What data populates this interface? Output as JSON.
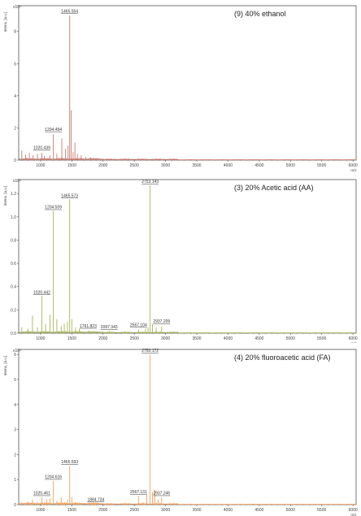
{
  "chart_data": [
    {
      "type": "line",
      "panel_label": "(9) 40% ethanol",
      "ylabel": "Intens. [a.u.]",
      "y_exponent": "x10⁴",
      "xlabel": "m/z",
      "x_ticks": [
        "1000",
        "1500",
        "2000",
        "2500",
        "3000",
        "3500",
        "4000",
        "4500",
        "5000",
        "5500",
        "6000"
      ],
      "y_ticks": [
        "0",
        "2",
        "4",
        "6",
        "8"
      ],
      "xlim": [
        650,
        6050
      ],
      "ylim": [
        0,
        9.6
      ],
      "color": "#c97a6e",
      "peaks": [
        {
          "mz": 700,
          "intensity": 0.6
        },
        {
          "mz": 760,
          "intensity": 0.35
        },
        {
          "mz": 820,
          "intensity": 0.45
        },
        {
          "mz": 880,
          "intensity": 0.3
        },
        {
          "mz": 950,
          "intensity": 0.4
        },
        {
          "mz": 1020.439,
          "intensity": 0.45
        },
        {
          "mz": 1060,
          "intensity": 0.25
        },
        {
          "mz": 1150,
          "intensity": 0.3
        },
        {
          "mz": 1204.494,
          "intensity": 1.6
        },
        {
          "mz": 1260,
          "intensity": 0.4
        },
        {
          "mz": 1340,
          "intensity": 1.35
        },
        {
          "mz": 1400,
          "intensity": 0.7
        },
        {
          "mz": 1440,
          "intensity": 0.9
        },
        {
          "mz": 1465.554,
          "intensity": 9.0
        },
        {
          "mz": 1490,
          "intensity": 3.1
        },
        {
          "mz": 1520,
          "intensity": 0.5
        },
        {
          "mz": 1550,
          "intensity": 1.1
        },
        {
          "mz": 1590,
          "intensity": 0.4
        },
        {
          "mz": 1650,
          "intensity": 0.3
        },
        {
          "mz": 1720,
          "intensity": 0.2
        },
        {
          "mz": 1800,
          "intensity": 0.15
        }
      ],
      "labels": [
        {
          "text": "1465.554",
          "mz": 1465.554,
          "intensity": 9.1
        },
        {
          "text": "1204.494",
          "mz": 1204.494,
          "intensity": 1.75
        },
        {
          "text": "1020.439",
          "mz": 1020.439,
          "intensity": 0.6
        }
      ]
    },
    {
      "type": "line",
      "panel_label": "(3) 20% Acetic acid (AA)",
      "ylabel": "Intens. [a.u.]",
      "y_exponent": "x10⁴",
      "xlabel": "m/z",
      "x_ticks": [
        "1000",
        "1500",
        "2000",
        "2500",
        "3000",
        "3500",
        "4000",
        "4500",
        "5000",
        "5500",
        "6000"
      ],
      "y_ticks": [
        "0.0",
        "0.2",
        "0.4",
        "0.6",
        "0.8",
        "1.0",
        "1.2"
      ],
      "xlim": [
        650,
        6050
      ],
      "ylim": [
        0,
        1.32
      ],
      "color": "#a8b45a",
      "peaks": [
        {
          "mz": 700,
          "intensity": 0.05
        },
        {
          "mz": 800,
          "intensity": 0.04
        },
        {
          "mz": 870,
          "intensity": 0.15
        },
        {
          "mz": 950,
          "intensity": 0.05
        },
        {
          "mz": 1020.442,
          "intensity": 0.32
        },
        {
          "mz": 1080,
          "intensity": 0.08
        },
        {
          "mz": 1150,
          "intensity": 0.16
        },
        {
          "mz": 1204.509,
          "intensity": 1.05
        },
        {
          "mz": 1260,
          "intensity": 0.12
        },
        {
          "mz": 1330,
          "intensity": 0.06
        },
        {
          "mz": 1380,
          "intensity": 0.08
        },
        {
          "mz": 1430,
          "intensity": 0.1
        },
        {
          "mz": 1465.573,
          "intensity": 1.15
        },
        {
          "mz": 1500,
          "intensity": 0.12
        },
        {
          "mz": 1560,
          "intensity": 0.05
        },
        {
          "mz": 1620,
          "intensity": 0.04
        },
        {
          "mz": 1761.823,
          "intensity": 0.02
        },
        {
          "mz": 2097.343,
          "intensity": 0.02
        },
        {
          "mz": 2567.104,
          "intensity": 0.03
        },
        {
          "mz": 2680,
          "intensity": 0.04
        },
        {
          "mz": 2720,
          "intensity": 0.05
        },
        {
          "mz": 2753.143,
          "intensity": 1.27
        },
        {
          "mz": 2790,
          "intensity": 0.08
        },
        {
          "mz": 2850,
          "intensity": 0.05
        },
        {
          "mz": 2937.209,
          "intensity": 0.06
        }
      ],
      "labels": [
        {
          "text": "2753.143",
          "mz": 2753.143,
          "intensity": 1.28
        },
        {
          "text": "1465.573",
          "mz": 1465.573,
          "intensity": 1.16
        },
        {
          "text": "1204.509",
          "mz": 1204.509,
          "intensity": 1.06
        },
        {
          "text": "1020.442",
          "mz": 1020.442,
          "intensity": 0.33
        },
        {
          "text": "1761.823",
          "mz": 1761.823,
          "intensity": 0.04
        },
        {
          "text": "2097.343",
          "mz": 2097.343,
          "intensity": 0.03
        },
        {
          "text": "2567.104",
          "mz": 2567.104,
          "intensity": 0.05
        },
        {
          "text": "2937.209",
          "mz": 2937.209,
          "intensity": 0.08
        }
      ]
    },
    {
      "type": "line",
      "panel_label": "(4) 20% fluoroacetic acid (FA)",
      "ylabel": "Intens. [a.u.]",
      "y_exponent": "x10⁴",
      "xlabel": "m/z",
      "x_ticks": [
        "1000",
        "1500",
        "2000",
        "2500",
        "3000",
        "3500",
        "4000",
        "4500",
        "5000",
        "5500",
        "6000"
      ],
      "y_ticks": [
        "0",
        "1",
        "2",
        "3",
        "4",
        "5",
        "6"
      ],
      "xlim": [
        650,
        6050
      ],
      "ylim": [
        0,
        6.2
      ],
      "color": "#f2a15a",
      "peaks": [
        {
          "mz": 700,
          "intensity": 0.1
        },
        {
          "mz": 800,
          "intensity": 0.1
        },
        {
          "mz": 870,
          "intensity": 0.2
        },
        {
          "mz": 950,
          "intensity": 0.1
        },
        {
          "mz": 1020.461,
          "intensity": 0.3
        },
        {
          "mz": 1100,
          "intensity": 0.2
        },
        {
          "mz": 1150,
          "intensity": 0.25
        },
        {
          "mz": 1204.616,
          "intensity": 0.95
        },
        {
          "mz": 1260,
          "intensity": 0.15
        },
        {
          "mz": 1330,
          "intensity": 0.3
        },
        {
          "mz": 1380,
          "intensity": 0.1
        },
        {
          "mz": 1430,
          "intensity": 0.2
        },
        {
          "mz": 1465.593,
          "intensity": 1.55
        },
        {
          "mz": 1500,
          "intensity": 0.3
        },
        {
          "mz": 1560,
          "intensity": 0.1
        },
        {
          "mz": 1620,
          "intensity": 0.05
        },
        {
          "mz": 1884.734,
          "intensity": 0.05
        },
        {
          "mz": 2567.131,
          "intensity": 0.35
        },
        {
          "mz": 2640,
          "intensity": 0.1
        },
        {
          "mz": 2700,
          "intensity": 0.4
        },
        {
          "mz": 2753.172,
          "intensity": 6.0
        },
        {
          "mz": 2790,
          "intensity": 0.5
        },
        {
          "mz": 2830,
          "intensity": 0.6
        },
        {
          "mz": 2880,
          "intensity": 0.2
        },
        {
          "mz": 2937.246,
          "intensity": 0.3
        }
      ],
      "labels": [
        {
          "text": "2753.172",
          "mz": 2753.172,
          "intensity": 6.05
        },
        {
          "text": "1465.593",
          "mz": 1465.593,
          "intensity": 1.6
        },
        {
          "text": "1204.616",
          "mz": 1204.616,
          "intensity": 1.0
        },
        {
          "text": "1020.461",
          "mz": 1020.461,
          "intensity": 0.35
        },
        {
          "text": "1884.734",
          "mz": 1884.734,
          "intensity": 0.1
        },
        {
          "text": "2567.131",
          "mz": 2567.131,
          "intensity": 0.4
        },
        {
          "text": "2937.246",
          "mz": 2937.246,
          "intensity": 0.35
        }
      ]
    }
  ]
}
